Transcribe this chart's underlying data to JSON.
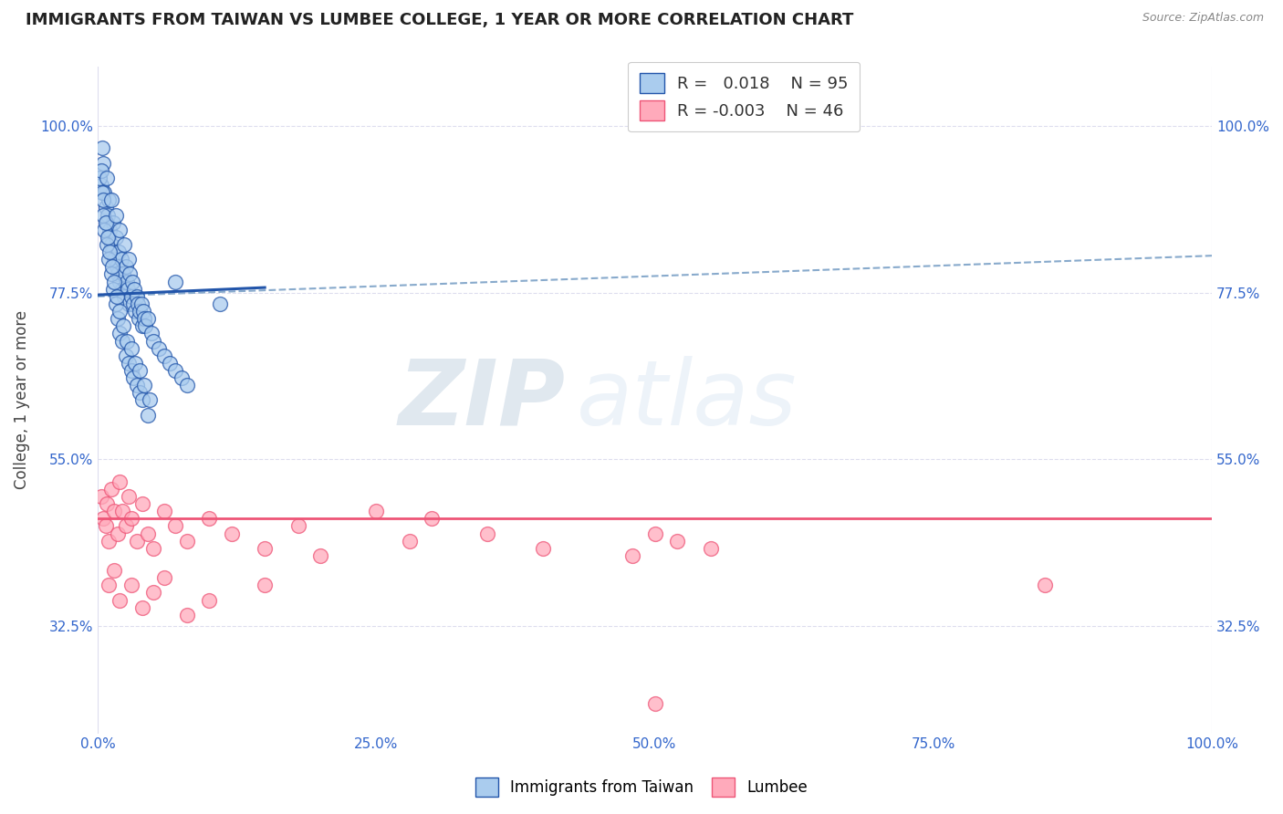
{
  "title": "IMMIGRANTS FROM TAIWAN VS LUMBEE COLLEGE, 1 YEAR OR MORE CORRELATION CHART",
  "source_text": "Source: ZipAtlas.com",
  "ylabel": "College, 1 year or more",
  "xlim": [
    0,
    100
  ],
  "ylim": [
    18,
    108
  ],
  "ytick_positions": [
    32.5,
    55.0,
    77.5,
    100.0
  ],
  "ytick_labels": [
    "32.5%",
    "55.0%",
    "77.5%",
    "100.0%"
  ],
  "xticklabels": [
    "0.0%",
    "25.0%",
    "50.0%",
    "75.0%",
    "100.0%"
  ],
  "xtick_positions": [
    0,
    25,
    50,
    75,
    100
  ],
  "legend_labels": [
    "Immigrants from Taiwan",
    "Lumbee"
  ],
  "R_blue": 0.018,
  "N_blue": 95,
  "R_pink": -0.003,
  "N_pink": 46,
  "blue_color": "#AACCEE",
  "pink_color": "#FFAABB",
  "trend_blue_solid_color": "#2255AA",
  "trend_blue_dash_color": "#88AACC",
  "trend_pink_color": "#EE5577",
  "watermark_zip": "ZIP",
  "watermark_atlas": "atlas",
  "blue_scatter_x": [
    0.3,
    0.5,
    0.6,
    0.7,
    0.8,
    0.9,
    1.0,
    1.0,
    1.1,
    1.2,
    1.3,
    1.4,
    1.5,
    1.6,
    1.7,
    1.8,
    1.9,
    2.0,
    2.1,
    2.2,
    2.3,
    2.4,
    2.5,
    2.6,
    2.7,
    2.8,
    2.9,
    3.0,
    3.1,
    3.2,
    3.3,
    3.4,
    3.5,
    3.6,
    3.7,
    3.8,
    3.9,
    4.0,
    4.1,
    4.2,
    4.3,
    4.5,
    4.8,
    5.0,
    5.5,
    6.0,
    6.5,
    7.0,
    7.5,
    8.0,
    0.2,
    0.4,
    0.5,
    0.6,
    0.8,
    1.0,
    1.2,
    1.4,
    1.6,
    1.8,
    2.0,
    2.2,
    2.5,
    2.8,
    3.0,
    3.2,
    3.5,
    3.8,
    4.0,
    4.5,
    0.3,
    0.5,
    0.7,
    0.9,
    1.1,
    1.3,
    1.5,
    1.7,
    2.0,
    2.3,
    2.6,
    3.0,
    3.4,
    3.8,
    4.2,
    4.7,
    0.4,
    0.8,
    1.2,
    1.6,
    2.0,
    2.4,
    2.8,
    7.0,
    11.0
  ],
  "blue_scatter_y": [
    92,
    95,
    91,
    89,
    87,
    88,
    85,
    90,
    86,
    84,
    83,
    87,
    82,
    85,
    81,
    80,
    83,
    79,
    82,
    78,
    80,
    77,
    81,
    79,
    78,
    76,
    80,
    77,
    79,
    76,
    78,
    75,
    77,
    76,
    74,
    75,
    76,
    73,
    75,
    74,
    73,
    74,
    72,
    71,
    70,
    69,
    68,
    67,
    66,
    65,
    93,
    91,
    88,
    86,
    84,
    82,
    80,
    78,
    76,
    74,
    72,
    71,
    69,
    68,
    67,
    66,
    65,
    64,
    63,
    61,
    94,
    90,
    87,
    85,
    83,
    81,
    79,
    77,
    75,
    73,
    71,
    70,
    68,
    67,
    65,
    63,
    97,
    93,
    90,
    88,
    86,
    84,
    82,
    79,
    76
  ],
  "pink_scatter_x": [
    0.3,
    0.5,
    0.7,
    0.8,
    1.0,
    1.2,
    1.5,
    1.8,
    2.0,
    2.2,
    2.5,
    2.8,
    3.0,
    3.5,
    4.0,
    4.5,
    5.0,
    6.0,
    7.0,
    8.0,
    10.0,
    12.0,
    15.0,
    18.0,
    20.0,
    25.0,
    28.0,
    30.0,
    35.0,
    40.0,
    1.0,
    1.5,
    2.0,
    3.0,
    4.0,
    5.0,
    6.0,
    8.0,
    10.0,
    15.0,
    48.0,
    50.0,
    52.0,
    55.0,
    85.0,
    50.0
  ],
  "pink_scatter_y": [
    50,
    47,
    46,
    49,
    44,
    51,
    48,
    45,
    52,
    48,
    46,
    50,
    47,
    44,
    49,
    45,
    43,
    48,
    46,
    44,
    47,
    45,
    43,
    46,
    42,
    48,
    44,
    47,
    45,
    43,
    38,
    40,
    36,
    38,
    35,
    37,
    39,
    34,
    36,
    38,
    42,
    45,
    44,
    43,
    38,
    22
  ],
  "background_color": "#FFFFFF",
  "grid_color": "#DDDDEE",
  "title_color": "#222222",
  "axis_label_color": "#444444",
  "tick_label_color": "#3366CC"
}
